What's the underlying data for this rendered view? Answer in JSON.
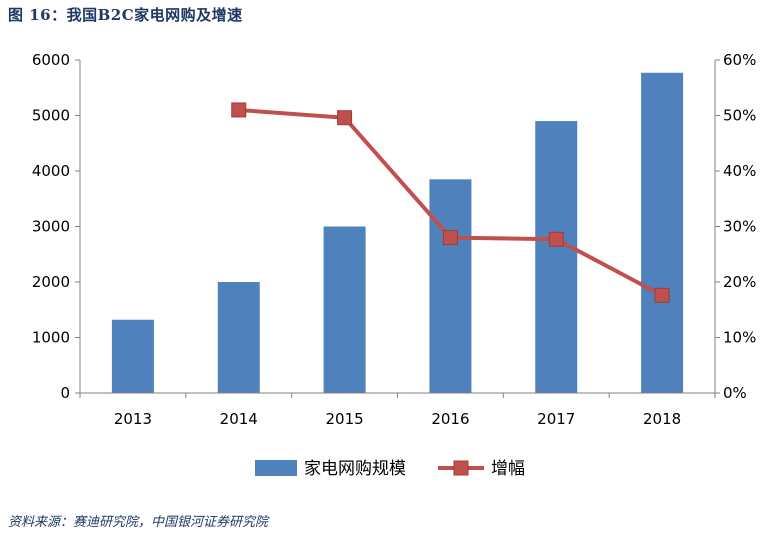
{
  "figure_title": "图 16：我国B2C家电网购及增速",
  "source_note": "资料来源：赛迪研究院，中国银河证券研究院",
  "colors": {
    "bar": "#4f81bd",
    "line": "#c0504d",
    "title": "#1f3864"
  },
  "chart_data": {
    "type": "bar",
    "categories": [
      "2013",
      "2014",
      "2015",
      "2016",
      "2017",
      "2018"
    ],
    "series": [
      {
        "name": "家电网购规模",
        "type": "bar",
        "axis": "left",
        "values": [
          1320,
          2000,
          3000,
          3850,
          4900,
          5770
        ]
      },
      {
        "name": "增幅",
        "type": "line",
        "axis": "right",
        "values": [
          null,
          51.0,
          49.6,
          28.0,
          27.7,
          17.6
        ]
      }
    ],
    "y_left": {
      "ylim": [
        0,
        6000
      ],
      "ticks": [
        "0",
        "1000",
        "2000",
        "3000",
        "4000",
        "5000",
        "6000"
      ]
    },
    "y_right": {
      "ylim": [
        0,
        60
      ],
      "ticks": [
        "0%",
        "10%",
        "20%",
        "30%",
        "40%",
        "50%",
        "60%"
      ]
    },
    "grid": false,
    "legend": "bottom-center"
  }
}
